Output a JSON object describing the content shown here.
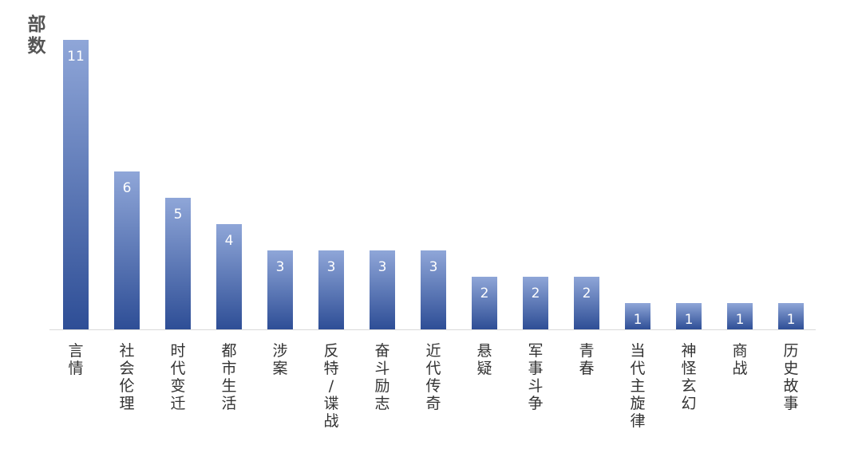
{
  "chart_data": {
    "type": "bar",
    "ylabel": "部数",
    "xlabel": "",
    "title": "",
    "categories": [
      "言情",
      "社会伦理",
      "时代变迁",
      "都市生活",
      "涉案",
      "反特/谍战",
      "奋斗励志",
      "近代传奇",
      "悬疑",
      "军事斗争",
      "青春",
      "当代主旋律",
      "神怪玄幻",
      "商战",
      "历史故事"
    ],
    "values": [
      11,
      6,
      5,
      4,
      3,
      3,
      3,
      3,
      2,
      2,
      2,
      1,
      1,
      1,
      1
    ],
    "ylim": [
      0,
      11
    ],
    "grid": false,
    "legend": "none",
    "colors": {
      "bar_top": "#8fa6d8",
      "bar_bottom": "#2e4e96",
      "value_label": "#ffffff",
      "category_label": "#333333",
      "axis_line": "#d9d9d9"
    }
  }
}
